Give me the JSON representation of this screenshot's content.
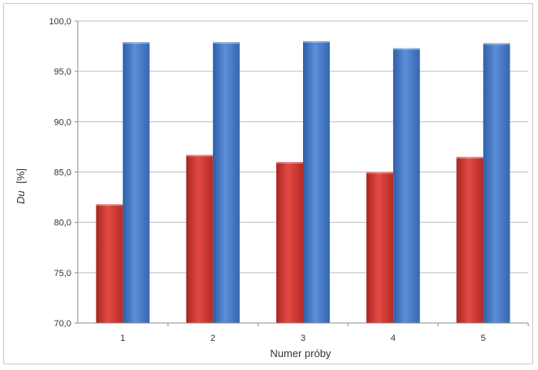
{
  "chart_data": {
    "type": "bar",
    "title": "",
    "xlabel": "Numer próby",
    "ylabel_italic": "Du",
    "ylabel_unit": "[%]",
    "ylim": [
      70,
      100
    ],
    "yticks": [
      "70,0",
      "75,0",
      "80,0",
      "85,0",
      "90,0",
      "95,0",
      "100,0"
    ],
    "categories": [
      "1",
      "2",
      "3",
      "4",
      "5"
    ],
    "series": [
      {
        "values": [
          81.8,
          86.7,
          86.0,
          85.0,
          86.5
        ],
        "color": "#d43b35"
      },
      {
        "values": [
          97.9,
          97.9,
          98.0,
          97.3,
          97.8
        ],
        "color": "#3f74c3"
      }
    ],
    "grid": true,
    "legend": "none"
  }
}
